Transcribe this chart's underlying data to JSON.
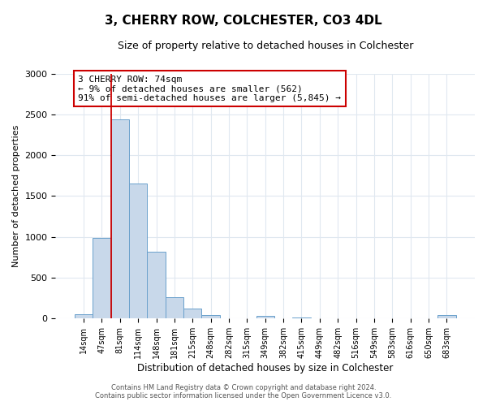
{
  "title": "3, CHERRY ROW, COLCHESTER, CO3 4DL",
  "subtitle": "Size of property relative to detached houses in Colchester",
  "xlabel": "Distribution of detached houses by size in Colchester",
  "ylabel": "Number of detached properties",
  "bin_labels": [
    "14sqm",
    "47sqm",
    "81sqm",
    "114sqm",
    "148sqm",
    "181sqm",
    "215sqm",
    "248sqm",
    "282sqm",
    "315sqm",
    "349sqm",
    "382sqm",
    "415sqm",
    "449sqm",
    "482sqm",
    "516sqm",
    "549sqm",
    "583sqm",
    "616sqm",
    "650sqm",
    "683sqm"
  ],
  "bar_values": [
    55,
    990,
    2440,
    1650,
    820,
    265,
    125,
    45,
    0,
    0,
    35,
    0,
    15,
    0,
    0,
    0,
    0,
    0,
    0,
    0,
    40
  ],
  "bar_color": "#c8d8ea",
  "bar_edge_color": "#6aa0cc",
  "vline_x_index": 2,
  "vline_color": "#cc0000",
  "ylim": [
    0,
    3000
  ],
  "yticks": [
    0,
    500,
    1000,
    1500,
    2000,
    2500,
    3000
  ],
  "annotation_title": "3 CHERRY ROW: 74sqm",
  "annotation_line1": "← 9% of detached houses are smaller (562)",
  "annotation_line2": "91% of semi-detached houses are larger (5,845) →",
  "annotation_box_color": "#ffffff",
  "annotation_box_edge_color": "#cc0000",
  "footer1": "Contains HM Land Registry data © Crown copyright and database right 2024.",
  "footer2": "Contains public sector information licensed under the Open Government Licence v3.0.",
  "bg_color": "#ffffff",
  "plot_bg_color": "#ffffff",
  "grid_color": "#e0e8f0"
}
